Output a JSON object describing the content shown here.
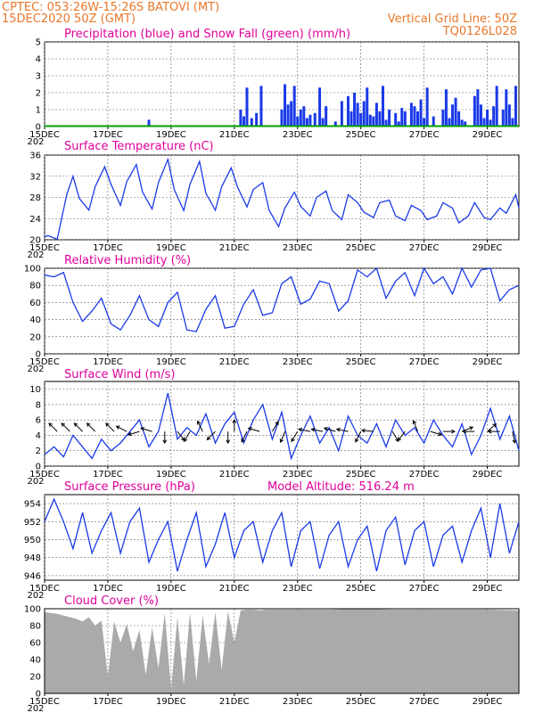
{
  "header": {
    "line1_left": "CPTEC:   053:26W-15:26S   BATOVI (MT)",
    "line2_left": "15DEC2020 50Z (GMT)",
    "line1_right": "Vertical Grid Line: 50Z",
    "line2_right": "TQ0126L028"
  },
  "colors": {
    "header": "#e8782a",
    "title": "#e0009a",
    "line": "#1a3ae8",
    "snow": "#00a000",
    "cloud": "#aaaaaa"
  },
  "x_ticks": [
    "15DEC",
    "17DEC",
    "19DEC",
    "21DEC",
    "23DEC",
    "25DEC",
    "27DEC",
    "29DEC"
  ],
  "x_tick_days": [
    0,
    2,
    4,
    6,
    8,
    10,
    12,
    14
  ],
  "x_range_days": [
    0,
    15
  ],
  "year_fragment": "202",
  "chart_data": [
    {
      "id": "precip",
      "type": "bar",
      "title": "Precipitation (blue) and Snow Fall (green) (mm/h)",
      "ylim": [
        0,
        5
      ],
      "yticks": [
        "0",
        "1",
        "2",
        "3",
        "4",
        "5"
      ],
      "series": [
        {
          "name": "Precipitation",
          "x": [
            3.3,
            6.2,
            6.3,
            6.4,
            6.55,
            6.7,
            6.85,
            7.5,
            7.6,
            7.7,
            7.8,
            7.9,
            8.0,
            8.1,
            8.2,
            8.3,
            8.4,
            8.55,
            8.7,
            8.8,
            8.9,
            9.2,
            9.4,
            9.6,
            9.7,
            9.8,
            9.9,
            10.0,
            10.1,
            10.2,
            10.3,
            10.4,
            10.5,
            10.6,
            10.7,
            10.8,
            10.9,
            11.1,
            11.2,
            11.3,
            11.4,
            11.6,
            11.7,
            11.8,
            11.9,
            12.0,
            12.1,
            12.3,
            12.6,
            12.7,
            12.8,
            12.9,
            13.0,
            13.1,
            13.2,
            13.3,
            13.6,
            13.7,
            13.8,
            13.9,
            14.0,
            14.1,
            14.2,
            14.3,
            14.5,
            14.6,
            14.7,
            14.8,
            14.9
          ],
          "values": [
            0.4,
            1.0,
            0.6,
            2.3,
            0.5,
            0.8,
            2.4,
            1.0,
            2.5,
            1.3,
            1.5,
            2.4,
            0.6,
            1.0,
            1.2,
            0.5,
            0.7,
            0.8,
            2.3,
            0.5,
            1.2,
            0.3,
            1.5,
            1.8,
            0.9,
            2.0,
            1.4,
            0.8,
            1.5,
            2.3,
            0.7,
            0.6,
            1.4,
            0.9,
            2.4,
            0.4,
            1.0,
            0.8,
            0.3,
            1.1,
            0.9,
            1.4,
            1.2,
            0.9,
            1.6,
            0.5,
            2.3,
            0.6,
            1.0,
            2.2,
            0.5,
            1.3,
            1.7,
            0.9,
            0.4,
            0.3,
            1.8,
            2.2,
            1.3,
            0.5,
            1.0,
            0.4,
            1.2,
            2.4,
            1.0,
            2.2,
            1.3,
            0.5,
            2.4
          ]
        },
        {
          "name": "Snow Fall",
          "x": [
            0,
            15
          ],
          "values": [
            0,
            0
          ]
        }
      ]
    },
    {
      "id": "temp",
      "type": "line",
      "title": "Surface Temperature (nC)",
      "ylim": [
        20,
        36
      ],
      "yticks": [
        "20",
        "24",
        "28",
        "32",
        "36"
      ],
      "x": [
        0,
        0.1,
        0.4,
        0.7,
        0.9,
        1.1,
        1.4,
        1.6,
        1.9,
        2.1,
        2.4,
        2.6,
        2.9,
        3.1,
        3.4,
        3.6,
        3.9,
        4.1,
        4.4,
        4.6,
        4.9,
        5.1,
        5.4,
        5.6,
        5.9,
        6.1,
        6.4,
        6.6,
        6.9,
        7.1,
        7.4,
        7.6,
        7.9,
        8.1,
        8.4,
        8.6,
        8.9,
        9.1,
        9.4,
        9.6,
        9.9,
        10.1,
        10.4,
        10.6,
        10.9,
        11.1,
        11.4,
        11.6,
        11.9,
        12.1,
        12.4,
        12.6,
        12.9,
        13.1,
        13.4,
        13.6,
        13.9,
        14.1,
        14.4,
        14.6,
        14.9,
        15.0
      ],
      "values": [
        20.5,
        20.8,
        20.1,
        28.5,
        32.0,
        27.8,
        25.6,
        30.0,
        33.8,
        30.5,
        26.5,
        31.0,
        34.2,
        29.0,
        25.8,
        30.8,
        35.2,
        29.5,
        25.5,
        30.5,
        34.8,
        28.8,
        25.6,
        30.0,
        33.6,
        30.0,
        26.2,
        29.5,
        30.8,
        25.6,
        22.5,
        26.0,
        29.0,
        26.3,
        24.5,
        28.0,
        29.2,
        25.5,
        23.8,
        28.5,
        27.0,
        25.2,
        24.2,
        27.0,
        27.5,
        24.5,
        23.6,
        26.5,
        25.5,
        23.8,
        24.5,
        27.0,
        26.0,
        23.2,
        24.5,
        27.0,
        24.2,
        23.8,
        26.0,
        25.0,
        28.5,
        26.0
      ]
    },
    {
      "id": "rh",
      "type": "line",
      "title": "Relative Humidity (%)",
      "ylim": [
        0,
        100
      ],
      "yticks": [
        "0",
        "20",
        "40",
        "60",
        "80",
        "100"
      ],
      "x": [
        0,
        0.3,
        0.6,
        0.9,
        1.2,
        1.5,
        1.8,
        2.1,
        2.4,
        2.7,
        3.0,
        3.3,
        3.6,
        3.9,
        4.2,
        4.5,
        4.8,
        5.1,
        5.4,
        5.7,
        6.0,
        6.3,
        6.6,
        6.9,
        7.2,
        7.5,
        7.8,
        8.1,
        8.4,
        8.7,
        9.0,
        9.3,
        9.6,
        9.9,
        10.2,
        10.5,
        10.8,
        11.1,
        11.4,
        11.7,
        12.0,
        12.3,
        12.6,
        12.9,
        13.2,
        13.5,
        13.8,
        14.1,
        14.4,
        14.7,
        15.0
      ],
      "values": [
        92,
        90,
        95,
        60,
        38,
        50,
        65,
        35,
        28,
        45,
        68,
        40,
        32,
        60,
        72,
        28,
        26,
        52,
        68,
        30,
        32,
        58,
        75,
        45,
        48,
        82,
        90,
        58,
        64,
        85,
        82,
        50,
        62,
        98,
        90,
        100,
        65,
        85,
        95,
        68,
        100,
        82,
        90,
        70,
        100,
        78,
        98,
        100,
        62,
        75,
        80
      ]
    },
    {
      "id": "wind",
      "type": "line",
      "title": "Surface Wind (m/s)",
      "ylim": [
        0,
        11
      ],
      "yticks": [
        "0",
        "2",
        "4",
        "6",
        "8",
        "10"
      ],
      "x": [
        0,
        0.3,
        0.6,
        0.9,
        1.2,
        1.5,
        1.8,
        2.1,
        2.4,
        2.7,
        3.0,
        3.3,
        3.6,
        3.9,
        4.2,
        4.5,
        4.8,
        5.1,
        5.4,
        5.7,
        6.0,
        6.3,
        6.6,
        6.9,
        7.2,
        7.5,
        7.8,
        8.1,
        8.4,
        8.7,
        9.0,
        9.3,
        9.6,
        9.9,
        10.2,
        10.5,
        10.8,
        11.1,
        11.4,
        11.7,
        12.0,
        12.3,
        12.6,
        12.9,
        13.2,
        13.5,
        13.8,
        14.1,
        14.4,
        14.7,
        15.0
      ],
      "values": [
        1.5,
        2.5,
        1.2,
        4.0,
        2.5,
        1.0,
        3.5,
        2.0,
        3.0,
        4.5,
        6.0,
        2.5,
        4.5,
        9.5,
        3.5,
        5.0,
        4.0,
        6.8,
        3.0,
        5.5,
        7.0,
        3.0,
        6.0,
        8.0,
        3.5,
        7.0,
        1.0,
        4.0,
        6.5,
        3.0,
        5.0,
        2.0,
        6.5,
        4.0,
        3.0,
        5.5,
        2.5,
        6.0,
        4.0,
        5.0,
        3.0,
        6.0,
        4.0,
        2.5,
        5.5,
        1.5,
        4.0,
        7.5,
        3.5,
        6.5,
        2.0
      ],
      "vectors": [
        {
          "x": 0.4,
          "u": -1,
          "v": 1
        },
        {
          "x": 0.8,
          "u": -1,
          "v": 1
        },
        {
          "x": 1.2,
          "u": -1,
          "v": 1
        },
        {
          "x": 1.6,
          "u": -1,
          "v": 1
        },
        {
          "x": 2.2,
          "u": -1,
          "v": 1
        },
        {
          "x": 2.6,
          "u": -1,
          "v": 0.5
        },
        {
          "x": 3.0,
          "u": -1,
          "v": -0.3
        },
        {
          "x": 3.4,
          "u": -1,
          "v": 0.3
        },
        {
          "x": 3.8,
          "u": 0,
          "v": -1
        },
        {
          "x": 4.2,
          "u": 0.8,
          "v": -1
        },
        {
          "x": 4.6,
          "u": -0.6,
          "v": -1
        },
        {
          "x": 5.0,
          "u": -0.5,
          "v": 1
        },
        {
          "x": 5.4,
          "u": -1,
          "v": -1
        },
        {
          "x": 5.8,
          "u": 0,
          "v": -1
        },
        {
          "x": 6.0,
          "u": 0,
          "v": 1
        },
        {
          "x": 6.4,
          "u": -0.5,
          "v": -1
        },
        {
          "x": 6.8,
          "u": -1,
          "v": 0.3
        },
        {
          "x": 7.2,
          "u": 0.6,
          "v": 1
        },
        {
          "x": 7.6,
          "u": -0.4,
          "v": -1
        },
        {
          "x": 8.0,
          "u": -0.6,
          "v": -1
        },
        {
          "x": 8.4,
          "u": -1,
          "v": 0.2
        },
        {
          "x": 8.8,
          "u": -1,
          "v": 0.2
        },
        {
          "x": 9.2,
          "u": -1,
          "v": 0.3
        },
        {
          "x": 9.6,
          "u": -1,
          "v": 0.2
        },
        {
          "x": 10.0,
          "u": -0.5,
          "v": -1
        },
        {
          "x": 10.4,
          "u": -1,
          "v": 0.1
        },
        {
          "x": 11.0,
          "u": 0.6,
          "v": -1
        },
        {
          "x": 11.4,
          "u": -0.8,
          "v": -1
        },
        {
          "x": 11.8,
          "u": -0.4,
          "v": 1
        },
        {
          "x": 12.2,
          "u": 1,
          "v": -0.3
        },
        {
          "x": 12.6,
          "u": 1,
          "v": 0
        },
        {
          "x": 13.2,
          "u": 1,
          "v": 0.4
        },
        {
          "x": 13.6,
          "u": -1,
          "v": 0
        },
        {
          "x": 14.0,
          "u": 0.7,
          "v": 0.6
        },
        {
          "x": 14.4,
          "u": -1,
          "v": 0
        },
        {
          "x": 14.8,
          "u": 0.2,
          "v": -1
        }
      ]
    },
    {
      "id": "pressure",
      "type": "line",
      "title": "Surface Pressure (hPa)",
      "subtitle": "Model Altitude: 516.24  m",
      "ylim": [
        945.5,
        955
      ],
      "yticks": [
        "946",
        "948",
        "950",
        "952",
        "954"
      ],
      "x": [
        0,
        0.3,
        0.6,
        0.9,
        1.2,
        1.5,
        1.8,
        2.1,
        2.4,
        2.7,
        3.0,
        3.3,
        3.6,
        3.9,
        4.2,
        4.5,
        4.8,
        5.1,
        5.4,
        5.7,
        6.0,
        6.3,
        6.6,
        6.9,
        7.2,
        7.5,
        7.8,
        8.1,
        8.4,
        8.7,
        9.0,
        9.3,
        9.6,
        9.9,
        10.2,
        10.5,
        10.8,
        11.1,
        11.4,
        11.7,
        12.0,
        12.3,
        12.6,
        12.9,
        13.2,
        13.5,
        13.8,
        14.1,
        14.4,
        14.7,
        15.0
      ],
      "values": [
        952,
        954.5,
        952,
        949,
        953,
        948.5,
        951,
        953,
        948.5,
        952,
        953.5,
        947.5,
        950,
        952,
        946.5,
        950,
        953,
        947,
        949.5,
        953,
        948,
        951,
        952,
        947.5,
        951,
        953,
        947,
        951,
        952,
        946.8,
        950.5,
        952,
        947,
        950,
        951.5,
        946.5,
        951,
        952.5,
        947.2,
        951,
        952,
        947,
        950.5,
        951.5,
        947.5,
        951,
        953.5,
        948,
        954,
        948.5,
        952
      ]
    },
    {
      "id": "cloud",
      "type": "area",
      "title": "Cloud Cover (%)",
      "ylim": [
        0,
        100
      ],
      "yticks": [
        "0",
        "20",
        "40",
        "60",
        "80",
        "100"
      ],
      "x": [
        0,
        0.2,
        0.4,
        0.6,
        0.8,
        1.0,
        1.2,
        1.4,
        1.6,
        1.8,
        2.0,
        2.2,
        2.4,
        2.6,
        2.8,
        3.0,
        3.2,
        3.4,
        3.6,
        3.8,
        4.0,
        4.2,
        4.4,
        4.6,
        4.8,
        5.0,
        5.2,
        5.4,
        5.6,
        5.8,
        6.0,
        6.2,
        6.4,
        6.6,
        6.8,
        7.0,
        8.0,
        9.0,
        10.0,
        11.0,
        12.0,
        13.0,
        14.0,
        15.0
      ],
      "values": [
        96,
        95,
        94,
        92,
        90,
        88,
        85,
        90,
        80,
        86,
        20,
        85,
        60,
        82,
        50,
        75,
        22,
        78,
        30,
        95,
        5,
        90,
        10,
        95,
        15,
        92,
        35,
        96,
        28,
        97,
        60,
        98,
        99,
        99,
        98,
        99,
        99,
        99,
        100,
        99,
        99,
        99,
        99,
        98
      ]
    }
  ]
}
